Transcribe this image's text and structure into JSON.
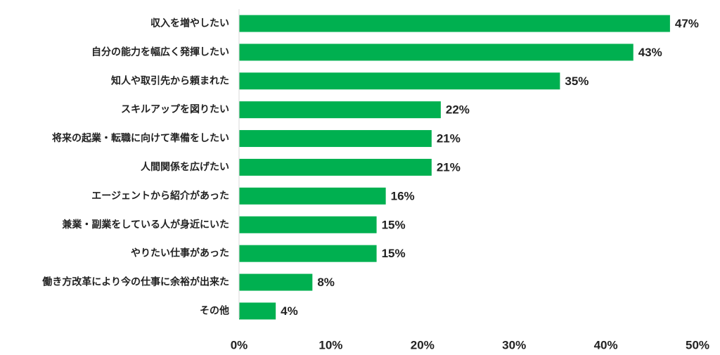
{
  "chart_data": {
    "type": "bar",
    "orientation": "horizontal",
    "categories": [
      "収入を増やしたい",
      "自分の能力を幅広く発揮したい",
      "知人や取引先から頼まれた",
      "スキルアップを図りたい",
      "将来の起業・転職に向けて準備をしたい",
      "人間関係を広げたい",
      "エージェントから紹介があった",
      "兼業・副業をしている人が身近にいた",
      "やりたい仕事があった",
      "働き方改革により今の仕事に余裕が出来た",
      "その他"
    ],
    "values": [
      47,
      43,
      35,
      22,
      21,
      21,
      16,
      15,
      15,
      8,
      4
    ],
    "value_labels": [
      "47%",
      "43%",
      "35%",
      "22%",
      "21%",
      "21%",
      "16%",
      "15%",
      "15%",
      "8%",
      "4%"
    ],
    "xlim": [
      0,
      50
    ],
    "x_ticks": [
      "0%",
      "10%",
      "20%",
      "30%",
      "40%",
      "50%"
    ],
    "grid": false,
    "bar_color": "#00b050"
  }
}
